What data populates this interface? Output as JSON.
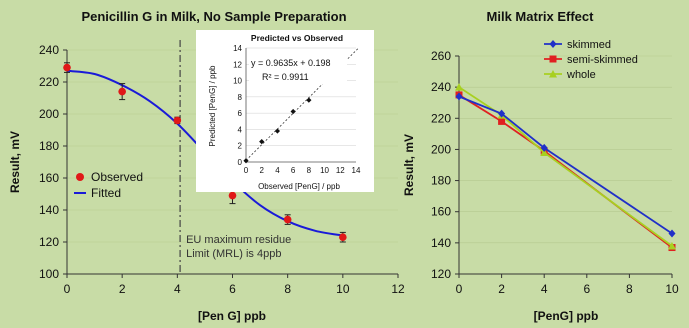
{
  "chart_data": [
    {
      "type": "scatter",
      "title": "Penicillin G in Milk, No Sample Preparation",
      "xlabel": "[Pen G] ppb",
      "ylabel": "Result, mV",
      "xlim": [
        0,
        12
      ],
      "ylim": [
        100,
        240
      ],
      "xticks": [
        "0",
        "2",
        "4",
        "6",
        "8",
        "10",
        "12"
      ],
      "yticks": [
        "100",
        "120",
        "140",
        "160",
        "180",
        "200",
        "220",
        "240"
      ],
      "legend_position": "left-middle",
      "series": [
        {
          "name": "Observed",
          "marker": "dot-with-errorbar",
          "color": "#e01818",
          "x": [
            0,
            2,
            4,
            6,
            8,
            10
          ],
          "y": [
            229,
            214,
            196,
            149,
            134,
            123
          ],
          "err": [
            3,
            5,
            2,
            5,
            3,
            3
          ]
        },
        {
          "name": "Fitted",
          "line": "solid",
          "color": "#1a1ad8",
          "x": [
            0,
            1,
            2,
            3,
            4,
            5,
            6,
            7,
            8,
            9,
            10
          ],
          "y": [
            227,
            225,
            218,
            208,
            194,
            176,
            158,
            143,
            133,
            127,
            124
          ]
        }
      ],
      "annotation": {
        "x": 4.1,
        "lines": [
          "EU maximum residue",
          "Limit (MRL) is 4ppb"
        ]
      }
    },
    {
      "type": "scatter",
      "title": "Predicted vs Observed",
      "xlabel": "Observed [PenG] / ppb",
      "ylabel": "Predicted [PenG] / ppb",
      "xlim": [
        0,
        14
      ],
      "ylim": [
        0,
        14
      ],
      "xticks": [
        "0",
        "2",
        "4",
        "6",
        "8",
        "10",
        "12",
        "14"
      ],
      "yticks": [
        "0",
        "2",
        "4",
        "6",
        "8",
        "10",
        "12",
        "14"
      ],
      "equation": "y = 0.9635x + 0.198",
      "r2": "R² = 0.9911",
      "series": [
        {
          "marker": "diamond",
          "color": "#111111",
          "x": [
            0,
            2,
            4,
            6,
            8,
            10
          ],
          "y": [
            0.15,
            2.5,
            3.8,
            6.2,
            7.6,
            9.9
          ]
        }
      ],
      "trendline": {
        "slope": 0.9635,
        "intercept": 0.198
      }
    },
    {
      "type": "line",
      "title": "Milk Matrix Effect",
      "xlabel": "[PenG] ppb",
      "ylabel": "Result, mV",
      "xlim": [
        0,
        10
      ],
      "ylim": [
        120,
        260
      ],
      "xticks": [
        "0",
        "2",
        "4",
        "6",
        "8",
        "10"
      ],
      "yticks": [
        "120",
        "140",
        "160",
        "180",
        "200",
        "220",
        "240",
        "260"
      ],
      "legend_position": "top-right",
      "x": [
        0,
        2,
        4,
        10
      ],
      "series": [
        {
          "name": "skimmed",
          "color": "#2030c8",
          "marker": "diamond",
          "values": [
            234,
            223,
            201,
            146
          ]
        },
        {
          "name": "semi-skimmed",
          "color": "#e02020",
          "marker": "square",
          "values": [
            235,
            218,
            199,
            137
          ]
        },
        {
          "name": "whole",
          "color": "#a8d020",
          "marker": "triangle",
          "values": [
            240,
            222,
            198,
            138
          ]
        }
      ]
    }
  ]
}
